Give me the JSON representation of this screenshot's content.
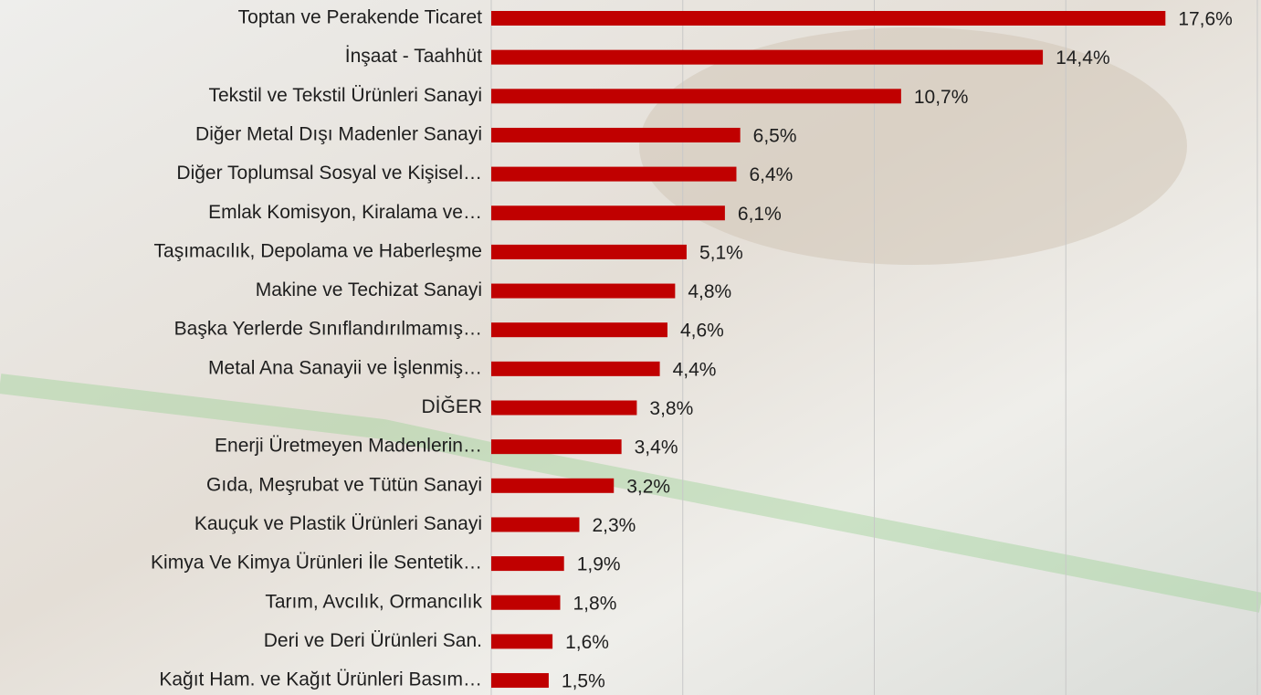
{
  "chart_data": {
    "type": "bar",
    "orientation": "horizontal",
    "categories": [
      "Toptan ve Perakende Ticaret",
      "İnşaat -  Taahhüt",
      "Tekstil ve Tekstil Ürünleri Sanayi",
      "Diğer Metal Dışı Madenler Sanayi",
      "Diğer Toplumsal Sosyal ve Kişisel…",
      "Emlak Komisyon, Kiralama ve…",
      "Taşımacılık, Depolama ve Haberleşme",
      "Makine ve Techizat Sanayi",
      "Başka Yerlerde Sınıflandırılmamış…",
      "Metal Ana Sanayii ve İşlenmiş…",
      "DİĞER",
      "Enerji Üretmeyen Madenlerin…",
      "Gıda, Meşrubat ve Tütün Sanayi",
      "Kauçuk ve Plastik Ürünleri Sanayi",
      "Kimya Ve Kimya Ürünleri İle Sentetik…",
      "Tarım, Avcılık, Ormancılık",
      "Deri ve Deri Ürünleri San.",
      "Kağıt Ham. ve Kağıt Ürünleri Basım…"
    ],
    "values": [
      17.6,
      14.4,
      10.7,
      6.5,
      6.4,
      6.1,
      5.1,
      4.8,
      4.6,
      4.4,
      3.8,
      3.4,
      3.2,
      2.3,
      1.9,
      1.8,
      1.6,
      1.5
    ],
    "value_labels": [
      "17,6%",
      "14,4%",
      "10,7%",
      "6,5%",
      "6,4%",
      "6,1%",
      "5,1%",
      "4,8%",
      "4,6%",
      "4,4%",
      "3,8%",
      "3,4%",
      "3,2%",
      "2,3%",
      "1,9%",
      "1,8%",
      "1,6%",
      "1,5%"
    ],
    "color": "#c00000",
    "xlim": [
      0,
      20
    ],
    "xticks": [
      0,
      5,
      10,
      15,
      20
    ],
    "grid": true
  }
}
